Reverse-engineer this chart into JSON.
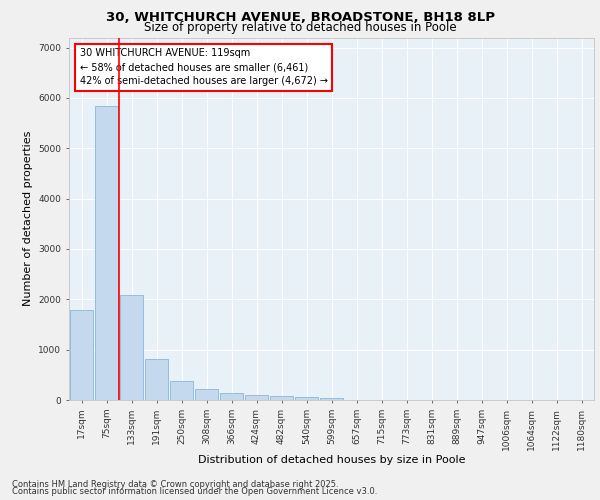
{
  "title_line1": "30, WHITCHURCH AVENUE, BROADSTONE, BH18 8LP",
  "title_line2": "Size of property relative to detached houses in Poole",
  "xlabel": "Distribution of detached houses by size in Poole",
  "ylabel": "Number of detached properties",
  "categories": [
    "17sqm",
    "75sqm",
    "133sqm",
    "191sqm",
    "250sqm",
    "308sqm",
    "366sqm",
    "424sqm",
    "482sqm",
    "540sqm",
    "599sqm",
    "657sqm",
    "715sqm",
    "773sqm",
    "831sqm",
    "889sqm",
    "947sqm",
    "1006sqm",
    "1064sqm",
    "1122sqm",
    "1180sqm"
  ],
  "values": [
    1780,
    5830,
    2090,
    820,
    370,
    215,
    140,
    95,
    75,
    55,
    30,
    0,
    0,
    0,
    0,
    0,
    0,
    0,
    0,
    0,
    0
  ],
  "bar_color": "#c5d9ee",
  "bar_edge_color": "#7aaed0",
  "vline_color": "red",
  "vline_x": 1.5,
  "annotation_text": "30 WHITCHURCH AVENUE: 119sqm\n← 58% of detached houses are smaller (6,461)\n42% of semi-detached houses are larger (4,672) →",
  "ylim": [
    0,
    7200
  ],
  "yticks": [
    0,
    1000,
    2000,
    3000,
    4000,
    5000,
    6000,
    7000
  ],
  "background_color": "#e8f0f8",
  "grid_color": "#ffffff",
  "fig_bg_color": "#f0f0f0",
  "footer_line1": "Contains HM Land Registry data © Crown copyright and database right 2025.",
  "footer_line2": "Contains public sector information licensed under the Open Government Licence v3.0.",
  "title_fontsize": 9.5,
  "subtitle_fontsize": 8.5,
  "axis_label_fontsize": 8,
  "tick_fontsize": 6.5,
  "annotation_fontsize": 7,
  "footer_fontsize": 6
}
